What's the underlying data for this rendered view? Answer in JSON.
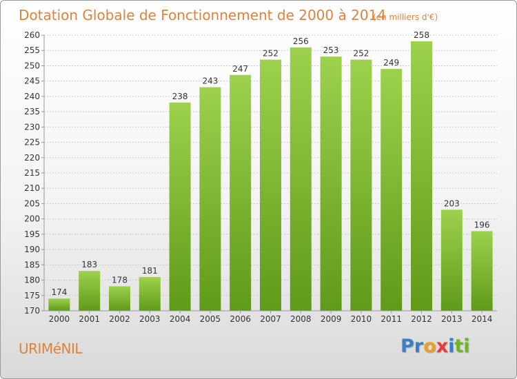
{
  "chart_data": {
    "type": "bar",
    "title": "Dotation Globale de Fonctionnement de 2000 à 2014",
    "unit": "(en milliers d'€)",
    "categories": [
      "2000",
      "2001",
      "2002",
      "2003",
      "2004",
      "2005",
      "2006",
      "2007",
      "2008",
      "2009",
      "2010",
      "2011",
      "2012",
      "2013",
      "2014"
    ],
    "values": [
      174,
      183,
      178,
      181,
      238,
      243,
      247,
      252,
      256,
      253,
      252,
      249,
      258,
      203,
      196
    ],
    "ylim": [
      170,
      260
    ],
    "yticks": [
      170,
      175,
      180,
      185,
      190,
      195,
      200,
      205,
      210,
      215,
      220,
      225,
      230,
      235,
      240,
      245,
      250,
      255,
      260
    ],
    "grid": true,
    "colors": {
      "bar_light": "#9dd14e",
      "bar_dark": "#5f9a18",
      "axis": "#999999"
    }
  },
  "commune": "URIMéNIL",
  "logo": {
    "letters": [
      {
        "ch": "P",
        "color": "#3a7fc4"
      },
      {
        "ch": "r",
        "color": "#3a7fc4"
      },
      {
        "ch": "o",
        "color": "#e8a020"
      },
      {
        "ch": "x",
        "color": "#e23d3d"
      },
      {
        "ch": "i",
        "color": "#3a7fc4"
      },
      {
        "ch": "t",
        "color": "#6fb52c"
      },
      {
        "ch": "i",
        "color": "#6fb52c"
      }
    ]
  }
}
